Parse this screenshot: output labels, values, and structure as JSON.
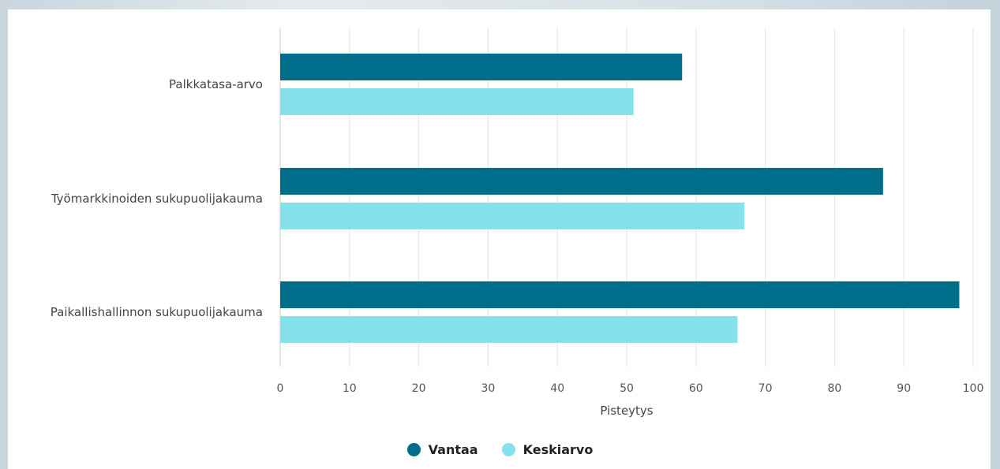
{
  "chart_data": {
    "type": "bar",
    "orientation": "horizontal",
    "categories": [
      "Palkkatasa-arvo",
      "Työmarkkinoiden sukupuolijakauma",
      "Paikallishallinnon sukupuolijakauma"
    ],
    "series": [
      {
        "name": "Vantaa",
        "color": "#006d8a",
        "values": [
          58,
          87,
          98
        ]
      },
      {
        "name": "Keskiarvo",
        "color": "#86e1ec",
        "values": [
          51,
          67,
          66
        ]
      }
    ],
    "xlabel": "Pisteytys",
    "ylabel": "",
    "xlim": [
      0,
      100
    ],
    "xticks": [
      "0",
      "10",
      "20",
      "30",
      "40",
      "50",
      "60",
      "70",
      "80",
      "90",
      "100"
    ],
    "grid": true,
    "legend": "bottom-center"
  }
}
